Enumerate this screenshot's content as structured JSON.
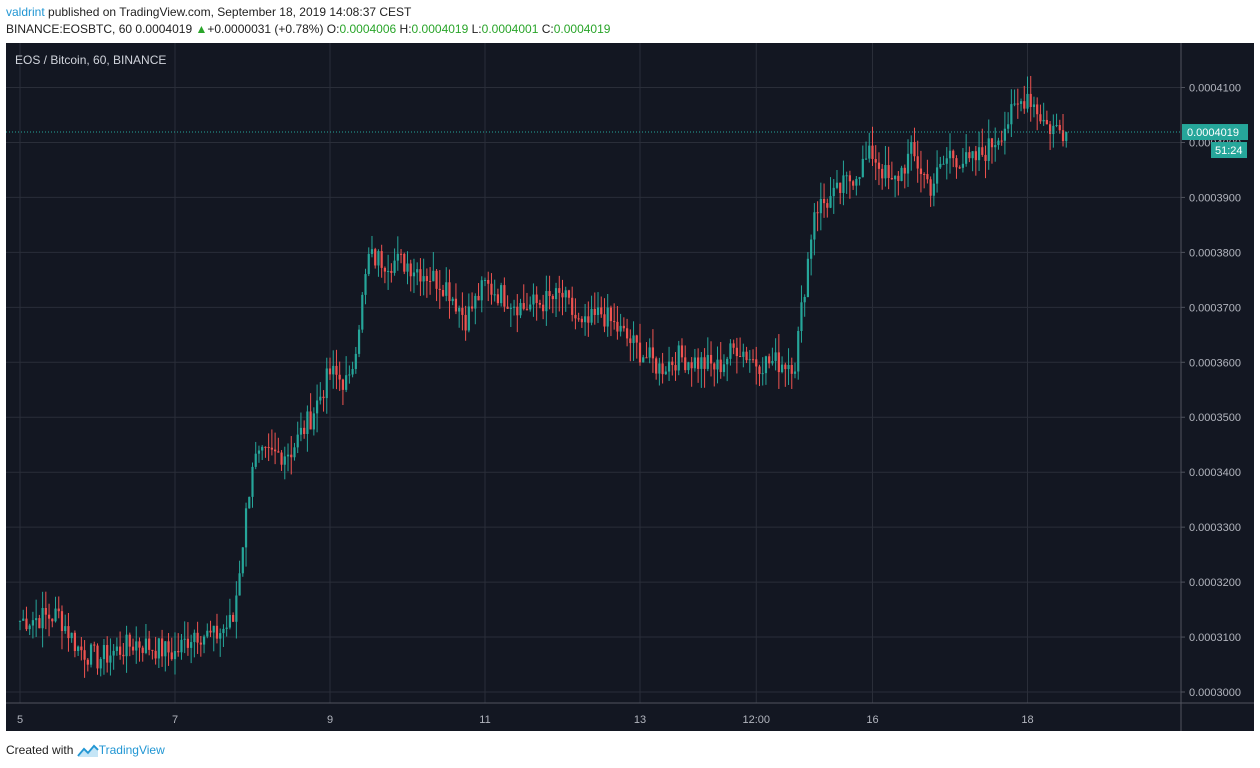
{
  "header": {
    "user": "valdrint",
    "text": "published on TradingView.com, September 18, 2019 14:08:37 CEST"
  },
  "quote": {
    "symbol": "BINANCE:EOSBTC, 60",
    "last": "0.0004019",
    "arrow": "▲",
    "change": "+0.0000031 (+0.78%)",
    "o_label": "O:",
    "o": "0.0004006",
    "h_label": "H:",
    "h": "0.0004019",
    "l_label": "L:",
    "l": "0.0004001",
    "c_label": "C:",
    "c": "0.0004019"
  },
  "footer": {
    "created": "Created with",
    "brand": "TradingView"
  },
  "colors": {
    "background": "#131722",
    "grid": "#2a2e39",
    "up": "#26a69a",
    "down": "#ef5350",
    "axis_text": "#b2b5be",
    "last_price_badge": "#26a69a"
  },
  "chart_data": {
    "type": "candlestick",
    "title": "EOS / Bitcoin, 60, BINANCE",
    "interval": "60",
    "xlabel": "",
    "ylabel": "",
    "x_tick_labels": [
      "5",
      "7",
      "9",
      "11",
      "13",
      "12:00",
      "16",
      "18"
    ],
    "y_tick_labels": [
      "0.0004100",
      "0.0004000",
      "0.0003900",
      "0.0003800",
      "0.0003700",
      "0.0003600",
      "0.0003500",
      "0.0003400",
      "0.0003300",
      "0.0003200",
      "0.0003100",
      "0.0003000"
    ],
    "ylim": [
      0.000298,
      0.0004181
    ],
    "grid": true,
    "last_price": "0.0004019",
    "countdown": "51:24",
    "close_path": [
      [
        "Sep 5 00:00",
        0.000313
      ],
      [
        "Sep 5 12:00",
        0.000314
      ],
      [
        "Sep 5 18:00",
        0.000308
      ],
      [
        "Sep 6 00:00",
        0.000306
      ],
      [
        "Sep 6 12:00",
        0.000309
      ],
      [
        "Sep 7 00:00",
        0.000307
      ],
      [
        "Sep 7 06:00",
        0.000311
      ],
      [
        "Sep 7 12:00",
        0.00031
      ],
      [
        "Sep 7 18:00",
        0.000313
      ],
      [
        "Sep 8 00:00",
        0.000342
      ],
      [
        "Sep 8 12:00",
        0.000344
      ],
      [
        "Sep 8 18:00",
        0.00035
      ],
      [
        "Sep 9 00:00",
        0.000358
      ],
      [
        "Sep 9 06:00",
        0.000356
      ],
      [
        "Sep 9 12:00",
        0.000379
      ],
      [
        "Sep 10 00:00",
        0.000378
      ],
      [
        "Sep 10 12:00",
        0.000374
      ],
      [
        "Sep 10 18:00",
        0.000368
      ],
      [
        "Sep 11 00:00",
        0.000374
      ],
      [
        "Sep 11 12:00",
        0.00037
      ],
      [
        "Sep 12 00:00",
        0.000372
      ],
      [
        "Sep 12 06:00",
        0.000366
      ],
      [
        "Sep 12 12:00",
        0.000369
      ],
      [
        "Sep 13 00:00",
        0.000362
      ],
      [
        "Sep 13 06:00",
        0.000359
      ],
      [
        "Sep 13 12:00",
        0.000361
      ],
      [
        "Sep 14 00:00",
        0.000359
      ],
      [
        "Sep 14 06:00",
        0.000363
      ],
      [
        "Sep 14 12:00",
        0.00036
      ],
      [
        "Sep 15 00:00",
        0.00036
      ],
      [
        "Sep 15 06:00",
        0.000388
      ],
      [
        "Sep 15 12:00",
        0.00039
      ],
      [
        "Sep 16 00:00",
        0.000398
      ],
      [
        "Sep 16 06:00",
        0.000392
      ],
      [
        "Sep 16 12:00",
        0.000398
      ],
      [
        "Sep 16 18:00",
        0.000392
      ],
      [
        "Sep 17 00:00",
        0.000398
      ],
      [
        "Sep 17 06:00",
        0.000396
      ],
      [
        "Sep 17 12:00",
        0.000399
      ],
      [
        "Sep 18 00:00",
        0.000409
      ],
      [
        "Sep 18 06:00",
        0.000403
      ],
      [
        "Sep 18 12:00",
        0.0004019
      ]
    ]
  }
}
